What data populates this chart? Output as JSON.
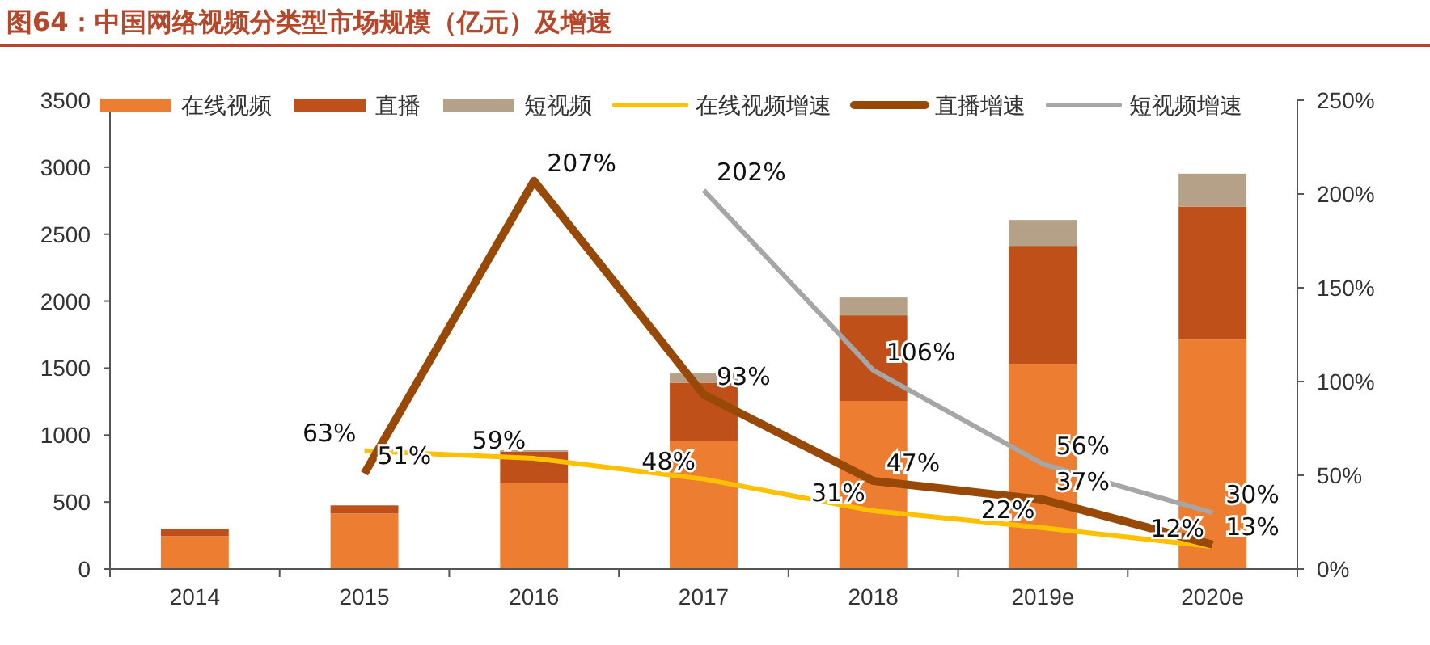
{
  "chart_data": {
    "type": "bar",
    "title": "图64：中国网络视频分类型市场规模（亿元）及增速",
    "categories": [
      "2014",
      "2015",
      "2016",
      "2017",
      "2018",
      "2019e",
      "2020e"
    ],
    "stacked": true,
    "series": [
      {
        "name": "在线视频",
        "color": "#ed7d31",
        "values": [
          245,
          414,
          640,
          957,
          1255,
          1532,
          1713
        ]
      },
      {
        "name": "直播",
        "color": "#c0501a",
        "values": [
          55,
          61,
          237,
          434,
          639,
          881,
          993
        ]
      },
      {
        "name": "短视频",
        "color": "#b5a088",
        "values": [
          null,
          null,
          10,
          69,
          133,
          193,
          246
        ]
      },
      {
        "name": "在线视频增速",
        "type": "line",
        "axis": "y2",
        "color": "#ffc000",
        "values": [
          null,
          63,
          59,
          48,
          31,
          22,
          12
        ],
        "value_labels": [
          null,
          "63%",
          "59%",
          "48%",
          "31%",
          "22%",
          "12%"
        ]
      },
      {
        "name": "直播增速",
        "type": "line",
        "axis": "y2",
        "color": "#984807",
        "values": [
          null,
          51,
          207,
          93,
          47,
          37,
          13
        ],
        "value_labels": [
          null,
          "51%",
          "207%",
          "93%",
          "47%",
          "37%",
          "13%"
        ]
      },
      {
        "name": "短视频增速",
        "type": "line",
        "axis": "y2",
        "color": "#a6a6a6",
        "values": [
          null,
          null,
          null,
          202,
          106,
          56,
          30
        ],
        "value_labels": [
          null,
          null,
          null,
          "202%",
          "106%",
          "56%",
          "30%"
        ]
      }
    ],
    "ylim": [
      0,
      3500
    ],
    "yticks": [
      0,
      500,
      1000,
      1500,
      2000,
      2500,
      3000,
      3500
    ],
    "y2lim": [
      0,
      250
    ],
    "y2ticks": [
      {
        "value": 0,
        "label": "0%"
      },
      {
        "value": 50,
        "label": "50%"
      },
      {
        "value": 100,
        "label": "100%"
      },
      {
        "value": 150,
        "label": "150%"
      },
      {
        "value": 200,
        "label": "200%"
      },
      {
        "value": 250,
        "label": "250%"
      }
    ],
    "legend": "top",
    "grid": false
  }
}
